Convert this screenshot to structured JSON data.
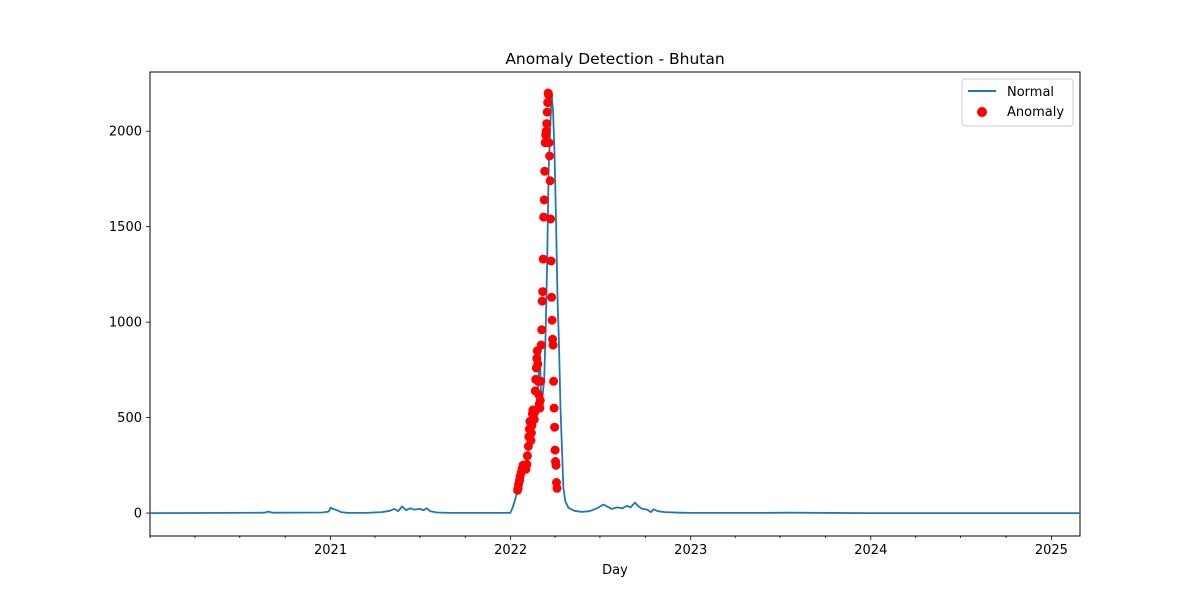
{
  "chart_data": {
    "type": "line",
    "title": "Anomaly Detection - Bhutan",
    "xlabel": "Day",
    "ylabel": "",
    "x_range": [
      "2020-01-01",
      "2025-02-28"
    ],
    "ylim": [
      -120,
      2310
    ],
    "x_ticks": [
      {
        "date": "2021-01-01",
        "label": "2021"
      },
      {
        "date": "2022-01-01",
        "label": "2022"
      },
      {
        "date": "2023-01-01",
        "label": "2023"
      },
      {
        "date": "2024-01-01",
        "label": "2024"
      },
      {
        "date": "2025-01-01",
        "label": "2025"
      }
    ],
    "x_minor_ticks": [
      "2020-01-01",
      "2020-04-01",
      "2020-07-01",
      "2020-10-01",
      "2021-04-01",
      "2021-07-01",
      "2021-10-01",
      "2022-04-01",
      "2022-07-01",
      "2022-10-01",
      "2023-04-01",
      "2023-07-01",
      "2023-10-01",
      "2024-04-01",
      "2024-07-01",
      "2024-10-01"
    ],
    "y_ticks": [
      0,
      500,
      1000,
      1500,
      2000
    ],
    "grid": false,
    "legend_position": "top-right",
    "colors": {
      "normal": "#1f77b4",
      "anomaly": "#ff0000"
    },
    "series": [
      {
        "name": "Normal",
        "kind": "line",
        "points": [
          [
            "2020-01-01",
            0
          ],
          [
            "2020-06-01",
            1
          ],
          [
            "2020-08-20",
            2
          ],
          [
            "2020-08-28",
            8
          ],
          [
            "2020-09-05",
            2
          ],
          [
            "2020-12-15",
            3
          ],
          [
            "2020-12-28",
            8
          ],
          [
            "2021-01-01",
            28
          ],
          [
            "2021-01-06",
            22
          ],
          [
            "2021-01-14",
            15
          ],
          [
            "2021-01-22",
            5
          ],
          [
            "2021-02-05",
            1
          ],
          [
            "2021-03-15",
            1
          ],
          [
            "2021-04-15",
            5
          ],
          [
            "2021-05-01",
            12
          ],
          [
            "2021-05-10",
            22
          ],
          [
            "2021-05-18",
            10
          ],
          [
            "2021-05-26",
            35
          ],
          [
            "2021-06-03",
            15
          ],
          [
            "2021-06-12",
            25
          ],
          [
            "2021-06-20",
            18
          ],
          [
            "2021-07-01",
            22
          ],
          [
            "2021-07-08",
            15
          ],
          [
            "2021-07-15",
            25
          ],
          [
            "2021-07-22",
            10
          ],
          [
            "2021-08-05",
            3
          ],
          [
            "2021-09-01",
            1
          ],
          [
            "2021-12-31",
            1
          ],
          [
            "2022-01-01",
            5
          ],
          [
            "2022-01-05",
            28
          ],
          [
            "2022-01-10",
            70
          ],
          [
            "2022-01-15",
            120
          ],
          [
            "2022-01-18",
            130
          ],
          [
            "2022-01-21",
            150
          ],
          [
            "2022-01-24",
            190
          ],
          [
            "2022-01-27",
            230
          ],
          [
            "2022-01-30",
            250
          ],
          [
            "2022-02-02",
            240
          ],
          [
            "2022-02-05",
            300
          ],
          [
            "2022-02-08",
            400
          ],
          [
            "2022-02-11",
            470
          ],
          [
            "2022-02-14",
            410
          ],
          [
            "2022-02-17",
            540
          ],
          [
            "2022-02-20",
            480
          ],
          [
            "2022-02-23",
            520
          ],
          [
            "2022-02-26",
            700
          ],
          [
            "2022-03-01",
            850
          ],
          [
            "2022-03-04",
            580
          ],
          [
            "2022-03-07",
            620
          ],
          [
            "2022-03-10",
            700
          ],
          [
            "2022-03-13",
            960
          ],
          [
            "2022-03-16",
            1330
          ],
          [
            "2022-03-19",
            1790
          ],
          [
            "2022-03-22",
            2000
          ],
          [
            "2022-03-25",
            2200
          ],
          [
            "2022-03-28",
            2100
          ],
          [
            "2022-03-31",
            1870
          ],
          [
            "2022-04-03",
            1540
          ],
          [
            "2022-04-06",
            1130
          ],
          [
            "2022-04-09",
            880
          ],
          [
            "2022-04-12",
            550
          ],
          [
            "2022-04-15",
            330
          ],
          [
            "2022-04-18",
            130
          ],
          [
            "2022-04-22",
            60
          ],
          [
            "2022-04-28",
            28
          ],
          [
            "2022-05-10",
            12
          ],
          [
            "2022-05-25",
            6
          ],
          [
            "2022-06-10",
            10
          ],
          [
            "2022-06-25",
            25
          ],
          [
            "2022-07-08",
            45
          ],
          [
            "2022-07-15",
            35
          ],
          [
            "2022-07-25",
            22
          ],
          [
            "2022-08-05",
            30
          ],
          [
            "2022-08-15",
            25
          ],
          [
            "2022-08-25",
            38
          ],
          [
            "2022-09-01",
            30
          ],
          [
            "2022-09-10",
            55
          ],
          [
            "2022-09-17",
            35
          ],
          [
            "2022-09-25",
            22
          ],
          [
            "2022-10-05",
            18
          ],
          [
            "2022-10-12",
            5
          ],
          [
            "2022-10-18",
            20
          ],
          [
            "2022-10-26",
            10
          ],
          [
            "2022-11-10",
            5
          ],
          [
            "2022-12-10",
            2
          ],
          [
            "2023-01-01",
            1
          ],
          [
            "2023-06-01",
            1
          ],
          [
            "2023-07-15",
            2
          ],
          [
            "2024-01-01",
            0
          ],
          [
            "2025-02-28",
            0
          ]
        ]
      },
      {
        "name": "Anomaly",
        "kind": "scatter",
        "points": [
          [
            "2022-01-15",
            120
          ],
          [
            "2022-01-16",
            130
          ],
          [
            "2022-01-17",
            150
          ],
          [
            "2022-01-19",
            170
          ],
          [
            "2022-01-20",
            190
          ],
          [
            "2022-01-22",
            210
          ],
          [
            "2022-01-24",
            230
          ],
          [
            "2022-01-26",
            250
          ],
          [
            "2022-01-28",
            240
          ],
          [
            "2022-01-30",
            250
          ],
          [
            "2022-02-01",
            230
          ],
          [
            "2022-02-03",
            255
          ],
          [
            "2022-02-04",
            300
          ],
          [
            "2022-02-06",
            350
          ],
          [
            "2022-02-07",
            400
          ],
          [
            "2022-02-08",
            440
          ],
          [
            "2022-02-09",
            480
          ],
          [
            "2022-02-11",
            380
          ],
          [
            "2022-02-12",
            420
          ],
          [
            "2022-02-13",
            460
          ],
          [
            "2022-02-14",
            520
          ],
          [
            "2022-02-15",
            540
          ],
          [
            "2022-02-16",
            510
          ],
          [
            "2022-02-18",
            490
          ],
          [
            "2022-02-19",
            530
          ],
          [
            "2022-02-20",
            640
          ],
          [
            "2022-02-21",
            700
          ],
          [
            "2022-02-22",
            760
          ],
          [
            "2022-02-23",
            810
          ],
          [
            "2022-02-24",
            850
          ],
          [
            "2022-02-25",
            780
          ],
          [
            "2022-02-26",
            690
          ],
          [
            "2022-02-27",
            620
          ],
          [
            "2022-02-28",
            570
          ],
          [
            "2022-03-01",
            550
          ],
          [
            "2022-03-02",
            590
          ],
          [
            "2022-03-03",
            690
          ],
          [
            "2022-03-04",
            880
          ],
          [
            "2022-03-05",
            960
          ],
          [
            "2022-03-06",
            1110
          ],
          [
            "2022-03-07",
            1160
          ],
          [
            "2022-03-08",
            1330
          ],
          [
            "2022-03-09",
            1550
          ],
          [
            "2022-03-10",
            1640
          ],
          [
            "2022-03-11",
            1790
          ],
          [
            "2022-03-12",
            1940
          ],
          [
            "2022-03-13",
            1980
          ],
          [
            "2022-03-14",
            2000
          ],
          [
            "2022-03-15",
            2040
          ],
          [
            "2022-03-16",
            2100
          ],
          [
            "2022-03-17",
            2150
          ],
          [
            "2022-03-18",
            2200
          ],
          [
            "2022-03-19",
            2190
          ],
          [
            "2022-03-20",
            1940
          ],
          [
            "2022-03-21",
            1870
          ],
          [
            "2022-03-22",
            1740
          ],
          [
            "2022-03-23",
            1540
          ],
          [
            "2022-03-24",
            1320
          ],
          [
            "2022-03-25",
            1130
          ],
          [
            "2022-03-26",
            1010
          ],
          [
            "2022-03-27",
            910
          ],
          [
            "2022-03-28",
            880
          ],
          [
            "2022-03-29",
            690
          ],
          [
            "2022-03-30",
            550
          ],
          [
            "2022-03-31",
            450
          ],
          [
            "2022-04-01",
            330
          ],
          [
            "2022-04-02",
            270
          ],
          [
            "2022-04-03",
            250
          ],
          [
            "2022-04-04",
            160
          ],
          [
            "2022-04-05",
            130
          ]
        ]
      }
    ]
  }
}
